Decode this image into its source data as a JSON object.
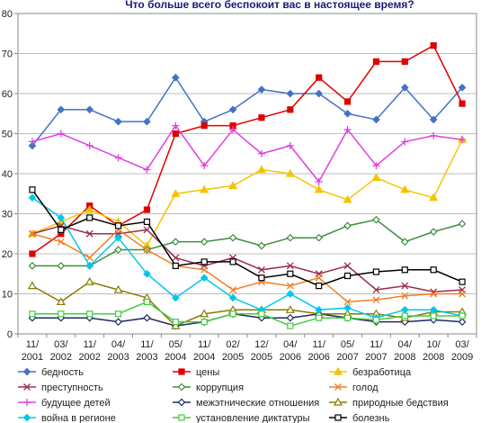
{
  "chart_data": {
    "type": "line",
    "title": "Что  больше всего беспокоит вас в настоящее время?",
    "xlabel": "",
    "ylabel": "",
    "ylim": [
      0,
      80
    ],
    "yticks": [
      0,
      10,
      20,
      30,
      40,
      50,
      60,
      70,
      80
    ],
    "grid": true,
    "legend_position": "bottom",
    "categories": [
      [
        "11/",
        "2001"
      ],
      [
        "03/",
        "2002"
      ],
      [
        "11/",
        "2002"
      ],
      [
        "04/",
        "2003"
      ],
      [
        "11/",
        "2003"
      ],
      [
        "05/",
        "2004"
      ],
      [
        "11/",
        "2004"
      ],
      [
        "02/",
        "2005"
      ],
      [
        "12/",
        "2005"
      ],
      [
        "04/",
        "2006"
      ],
      [
        "11/",
        "2006"
      ],
      [
        "05/",
        "2007"
      ],
      [
        "11/",
        "2007"
      ],
      [
        "04/",
        "2008"
      ],
      [
        "10/",
        "2008"
      ],
      [
        "03/",
        "2009"
      ]
    ],
    "series": [
      {
        "name": "бедность",
        "color": "#4472C4",
        "marker": "diamond-filled",
        "values": [
          47,
          56,
          56,
          53,
          53,
          64,
          53,
          56,
          61,
          60,
          60,
          55,
          53.5,
          61.5,
          53.5,
          61.5
        ]
      },
      {
        "name": "цены",
        "color": "#E00000",
        "marker": "square-filled",
        "values": [
          20,
          25,
          32,
          27,
          31,
          50,
          52,
          52,
          54,
          56,
          64,
          58,
          68,
          68,
          72,
          57.5
        ]
      },
      {
        "name": "безработица",
        "color": "#F5C400",
        "marker": "triangle-filled",
        "values": [
          25,
          28,
          31,
          28,
          22,
          35,
          36,
          37,
          41,
          40,
          36,
          33.5,
          39,
          36,
          34,
          48.5
        ]
      },
      {
        "name": "преступность",
        "color": "#9B2D4E",
        "marker": "x",
        "values": [
          25,
          27,
          25,
          25,
          26,
          19,
          17,
          19,
          16,
          17,
          15,
          17,
          11,
          12,
          10.5,
          11
        ]
      },
      {
        "name": "коррупция",
        "color": "#3E8E3E",
        "marker": "diamond-open",
        "values": [
          17,
          17,
          17,
          21,
          21,
          23,
          23,
          24,
          22,
          24,
          24,
          27,
          28.5,
          23,
          25.5,
          27.5
        ]
      },
      {
        "name": "голод",
        "color": "#F07E26",
        "marker": "x",
        "values": [
          25,
          23,
          19,
          26,
          21,
          17,
          16,
          11,
          13,
          12,
          14,
          8,
          8.5,
          9.5,
          10,
          10
        ]
      },
      {
        "name": "будущее детей",
        "color": "#E040E0",
        "marker": "plus",
        "values": [
          48,
          50,
          47,
          44,
          41,
          52,
          42,
          51,
          45,
          47,
          38,
          51,
          42,
          48,
          49.5,
          48.5
        ]
      },
      {
        "name": "межэтнические отношения",
        "color": "#1F2A66",
        "marker": "diamond-open",
        "values": [
          4,
          4,
          4,
          3,
          4,
          2,
          3,
          5,
          4,
          4,
          5,
          4,
          3,
          3,
          3.5,
          3
        ]
      },
      {
        "name": "природные бедствия",
        "color": "#8A7A00",
        "marker": "triangle-open",
        "values": [
          12,
          8,
          13,
          11,
          9,
          2,
          5,
          6,
          6,
          6,
          5,
          5,
          5,
          4,
          5.5,
          5.5
        ]
      },
      {
        "name": "война в регионе",
        "color": "#00C8E8",
        "marker": "diamond-filled",
        "values": [
          34,
          29,
          17,
          24,
          15,
          9,
          14,
          9,
          6,
          10,
          6,
          6.5,
          4,
          6,
          6,
          4.5
        ]
      },
      {
        "name": "установление диктатуры",
        "color": "#44CC44",
        "marker": "square-open",
        "values": [
          5,
          5,
          5,
          5,
          8,
          3,
          3,
          5,
          5,
          2,
          4,
          4,
          3.5,
          4.5,
          4.5,
          4.5
        ]
      },
      {
        "name": "болезнь",
        "color": "#000000",
        "marker": "square-open",
        "values": [
          36,
          26,
          29,
          27,
          28,
          17,
          18,
          18,
          14,
          15,
          12,
          14.5,
          15.5,
          16,
          16,
          13
        ]
      }
    ]
  }
}
